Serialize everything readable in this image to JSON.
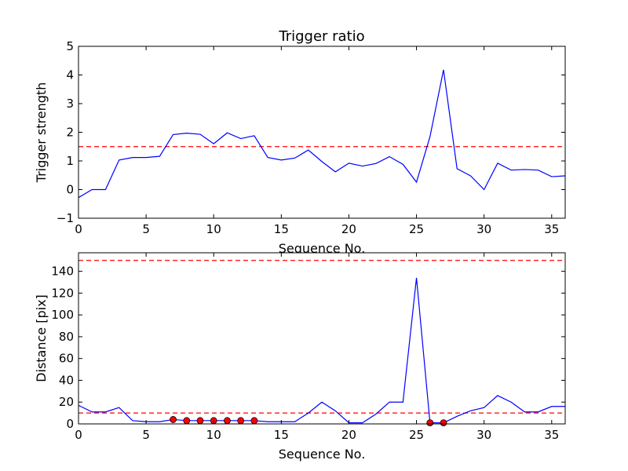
{
  "chart_data": [
    {
      "type": "line",
      "title": "Trigger ratio",
      "xlabel": "Sequence No.",
      "ylabel": "Trigger strength",
      "xlim": [
        0,
        36
      ],
      "ylim": [
        -1,
        5
      ],
      "xticks": [
        0,
        5,
        10,
        15,
        20,
        25,
        30,
        35
      ],
      "yticks": [
        -1,
        0,
        1,
        2,
        3,
        4,
        5
      ],
      "xtick_labels": [
        "0",
        "5",
        "10",
        "15",
        "20",
        "25",
        "30",
        "35"
      ],
      "ytick_labels": [
        "−1",
        "0",
        "1",
        "2",
        "3",
        "4",
        "5"
      ],
      "grid": false,
      "series": [
        {
          "color": "#0000ff",
          "x": [
            0,
            1,
            2,
            3,
            4,
            5,
            6,
            7,
            8,
            9,
            10,
            11,
            12,
            13,
            14,
            15,
            16,
            17,
            18,
            19,
            20,
            21,
            22,
            23,
            24,
            25,
            26,
            27,
            28,
            29,
            30,
            31,
            32,
            33,
            34,
            35,
            36
          ],
          "y": [
            -0.28,
            0.0,
            0.0,
            1.03,
            1.12,
            1.12,
            1.16,
            1.92,
            1.97,
            1.93,
            1.6,
            1.98,
            1.78,
            1.88,
            1.12,
            1.03,
            1.1,
            1.38,
            0.98,
            0.62,
            0.92,
            0.82,
            0.91,
            1.15,
            0.88,
            0.26,
            1.85,
            4.18,
            0.73,
            0.48,
            0.0,
            0.92,
            0.68,
            0.7,
            0.68,
            0.45,
            0.48
          ]
        }
      ],
      "hlines": [
        {
          "y": 1.5,
          "color": "#ff0000",
          "style": "dashed"
        }
      ]
    },
    {
      "type": "line",
      "title": "",
      "xlabel": "Sequence No.",
      "ylabel": "Distance [pix]",
      "xlim": [
        0,
        36
      ],
      "ylim": [
        0,
        157
      ],
      "xticks": [
        0,
        5,
        10,
        15,
        20,
        25,
        30,
        35
      ],
      "yticks": [
        0,
        20,
        40,
        60,
        80,
        100,
        120,
        140
      ],
      "xtick_labels": [
        "0",
        "5",
        "10",
        "15",
        "20",
        "25",
        "30",
        "35"
      ],
      "ytick_labels": [
        "0",
        "20",
        "40",
        "60",
        "80",
        "100",
        "120",
        "140"
      ],
      "grid": false,
      "series": [
        {
          "color": "#0000ff",
          "x": [
            0,
            1,
            2,
            3,
            4,
            5,
            6,
            7,
            8,
            9,
            10,
            11,
            12,
            13,
            14,
            15,
            16,
            17,
            18,
            19,
            20,
            21,
            22,
            23,
            24,
            25,
            26,
            27,
            28,
            29,
            30,
            31,
            32,
            33,
            34,
            35,
            36
          ],
          "y": [
            17,
            11,
            11,
            15,
            3,
            2,
            2,
            4,
            3,
            3,
            3,
            3,
            3,
            3,
            2,
            2,
            2,
            10,
            20,
            12,
            1,
            1,
            9,
            20,
            20,
            134,
            1,
            1,
            7,
            12,
            15,
            26,
            20,
            11,
            11,
            16,
            16
          ]
        }
      ],
      "markers": {
        "color": "#ff0000",
        "x": [
          7,
          8,
          9,
          10,
          11,
          12,
          13,
          26,
          27
        ],
        "y": [
          4,
          3,
          3,
          3,
          3,
          3,
          3,
          1,
          1
        ]
      },
      "hlines": [
        {
          "y": 150,
          "color": "#ff0000",
          "style": "dashed"
        },
        {
          "y": 10,
          "color": "#ff0000",
          "style": "dashed"
        }
      ]
    }
  ]
}
